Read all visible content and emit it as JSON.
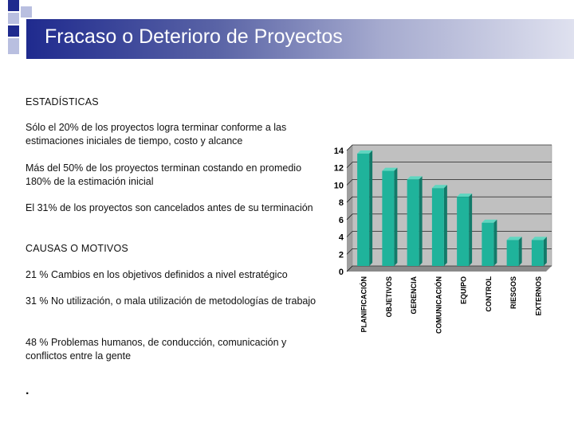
{
  "header": {
    "title": "Fracaso o Deterioro de Proyectos"
  },
  "content": {
    "stats_heading": "ESTADÍSTICAS",
    "stat1": "Sólo el 20% de los proyectos logra terminar conforme a las estimaciones iniciales de tiempo, costo y alcance",
    "stat2": "Más del 50% de los proyectos terminan costando en promedio 180% de la estimación inicial",
    "stat3": "El 31% de los proyectos son cancelados antes de su terminación",
    "causes_heading": "CAUSAS O MOTIVOS",
    "cause1": "21 %  Cambios en los objetivos definidos a nivel estratégico",
    "cause2": "31 %  No utilización, o mala utilización de metodologías de trabajo",
    "cause3": "48 %  Problemas humanos, de conducción, comunicación y conflictos entre la gente",
    "bullet": "."
  },
  "chart_data": {
    "type": "bar",
    "categories": [
      "PLANIFICACIÓN",
      "OBJETIVOS",
      "GERENCIA",
      "COMUNICACIÓN",
      "EQUIPO",
      "CONTROL",
      "RIESGOS",
      "EXTERNOS"
    ],
    "values": [
      13,
      11,
      10,
      9,
      8,
      5,
      3,
      3
    ],
    "ylim": [
      0,
      14
    ],
    "yticks": [
      0,
      2,
      4,
      6,
      8,
      10,
      12,
      14
    ],
    "grid": true,
    "bar_color": "#1fb39b",
    "plot_background": "#c0c0c0",
    "title": "",
    "xlabel": "",
    "ylabel": ""
  }
}
